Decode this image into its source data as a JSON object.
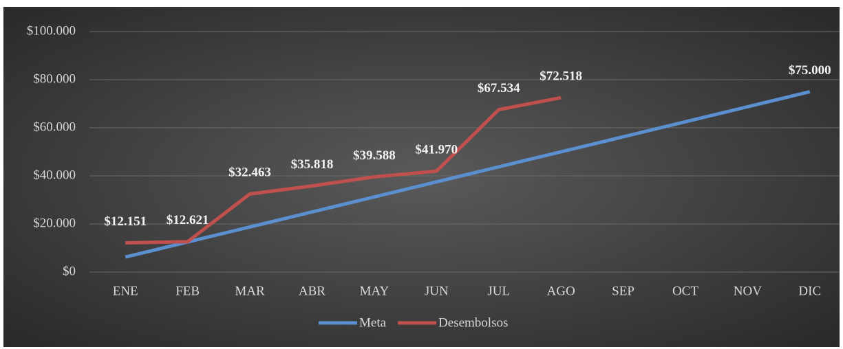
{
  "chart_data": {
    "type": "line",
    "categories": [
      "ENE",
      "FEB",
      "MAR",
      "ABR",
      "MAY",
      "JUN",
      "JUL",
      "AGO",
      "SEP",
      "OCT",
      "NOV",
      "DIC"
    ],
    "series": [
      {
        "name": "Meta",
        "color": "#5b8fd0",
        "values": [
          6250,
          12500,
          18750,
          25000,
          31250,
          37500,
          43750,
          50000,
          56250,
          62500,
          68750,
          75000
        ],
        "value_labels": [
          null,
          null,
          null,
          null,
          null,
          null,
          null,
          null,
          null,
          null,
          null,
          "$75.000"
        ]
      },
      {
        "name": "Desembolsos",
        "color": "#c0504d",
        "values": [
          12151,
          12621,
          32463,
          35818,
          39588,
          41970,
          67534,
          72518,
          null,
          null,
          null,
          null
        ],
        "value_labels": [
          "$12.151",
          "$12.621",
          "$32.463",
          "$35.818",
          "$39.588",
          "$41.970",
          "$67.534",
          "$72.518",
          null,
          null,
          null,
          null
        ]
      }
    ],
    "ylim": [
      0,
      100000
    ],
    "yticks": [
      {
        "value": 0,
        "label": "$0"
      },
      {
        "value": 20000,
        "label": "$20.000"
      },
      {
        "value": 40000,
        "label": "$40.000"
      },
      {
        "value": 60000,
        "label": "$60.000"
      },
      {
        "value": 80000,
        "label": "$80.000"
      },
      {
        "value": 100000,
        "label": "$100.000"
      }
    ],
    "grid": true,
    "legend": "bottom"
  }
}
